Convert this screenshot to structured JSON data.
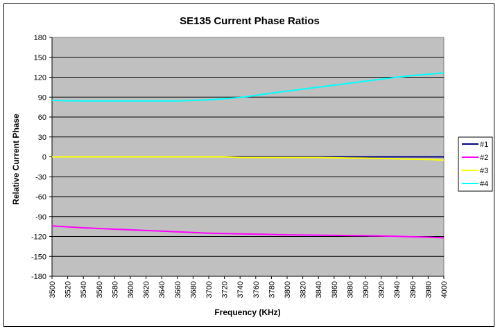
{
  "chart_data": {
    "type": "line",
    "title": "SE135 Current Phase Ratios",
    "xlabel": "Frequency (KHz)",
    "ylabel": "Relative Current Phase",
    "x": [
      3500,
      3520,
      3540,
      3560,
      3580,
      3600,
      3620,
      3640,
      3660,
      3680,
      3700,
      3720,
      3740,
      3760,
      3780,
      3800,
      3820,
      3840,
      3860,
      3880,
      3900,
      3920,
      3940,
      3960,
      3980,
      4000
    ],
    "xticks": [
      "3500",
      "3520",
      "3540",
      "3560",
      "3580",
      "3600",
      "3620",
      "3640",
      "3660",
      "3680",
      "3700",
      "3720",
      "3740",
      "3760",
      "3780",
      "3800",
      "3820",
      "3840",
      "3860",
      "3880",
      "3900",
      "3920",
      "3940",
      "3960",
      "3980",
      "4000"
    ],
    "ylim": [
      -180,
      180
    ],
    "yticks": [
      "180",
      "150",
      "120",
      "90",
      "60",
      "30",
      "0",
      "-30",
      "-60",
      "-90",
      "-120",
      "-150",
      "-180"
    ],
    "ytick_values": [
      180,
      150,
      120,
      90,
      60,
      30,
      0,
      -30,
      -60,
      -90,
      -120,
      -150,
      -180
    ],
    "grid": true,
    "plot_background": "#c0c0c0",
    "legend_position": "right",
    "series": [
      {
        "name": "#1",
        "color": "#000080",
        "values": [
          0,
          0,
          0,
          0,
          0,
          0,
          0,
          0,
          0,
          0,
          0,
          0,
          0,
          0,
          0,
          0,
          0,
          0,
          0,
          0,
          0,
          0,
          0,
          0,
          0,
          0
        ]
      },
      {
        "name": "#2",
        "color": "#ff00ff",
        "values": [
          -104,
          -105.5,
          -107,
          -108,
          -109,
          -110,
          -111,
          -112,
          -113,
          -114,
          -115,
          -115.5,
          -116,
          -116.5,
          -117,
          -117.5,
          -117.8,
          -118,
          -118.3,
          -118.6,
          -118.9,
          -119.3,
          -119.8,
          -120.5,
          -121,
          -122
        ]
      },
      {
        "name": "#3",
        "color": "#ffff00",
        "values": [
          0,
          0,
          0,
          0,
          0,
          0,
          0,
          0,
          0,
          0,
          0,
          0,
          -1,
          -1,
          -1,
          -1,
          -1,
          -1,
          -1.5,
          -1.8,
          -2,
          -2.5,
          -3,
          -3.5,
          -4,
          -5
        ]
      },
      {
        "name": "#4",
        "color": "#00ffff",
        "values": [
          85,
          84.5,
          84.3,
          84.2,
          84.2,
          84.2,
          84.2,
          84.2,
          84.3,
          85,
          86,
          87.5,
          89.5,
          92.5,
          96,
          99,
          102,
          105,
          108,
          111,
          114,
          117,
          120,
          122.5,
          124.5,
          126.5
        ]
      }
    ]
  }
}
